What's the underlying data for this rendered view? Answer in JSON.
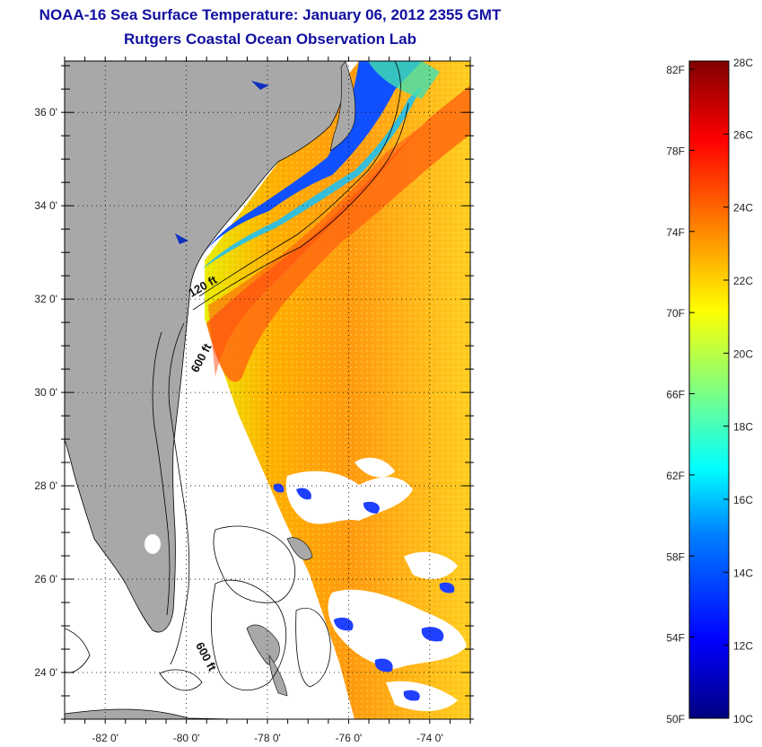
{
  "header": {
    "title_line1": "NOAA-16 Sea Surface Temperature:  January 06, 2012 2355 GMT",
    "title_line2": "Rutgers Coastal Ocean Observation Lab"
  },
  "map": {
    "lat_labels": [
      "36 0'",
      "34 0'",
      "32 0'",
      "30 0'",
      "28 0'",
      "26 0'",
      "24 0'"
    ],
    "lat_values": [
      36,
      34,
      32,
      30,
      28,
      26,
      24
    ],
    "lon_labels": [
      "-82 0'",
      "-80 0'",
      "-78 0'",
      "-76 0'",
      "-74 0'"
    ],
    "lon_values": [
      -82,
      -80,
      -78,
      -76,
      -74
    ],
    "lat_range": [
      23,
      37.1
    ],
    "lon_range": [
      -83,
      -73
    ],
    "contour_labels": [
      {
        "text": "120 ft",
        "lon": -79.55,
        "lat": 32.2
      },
      {
        "text": "600 ft",
        "lon": -79.55,
        "lat": 30.7
      },
      {
        "text": "600 ft",
        "lon": -79.6,
        "lat": 24.3
      }
    ],
    "colors": {
      "land": "#a8a8a8",
      "frame": "#000000"
    }
  },
  "colorbar": {
    "f_labels": [
      "82F",
      "78F",
      "74F",
      "70F",
      "66F",
      "62F",
      "58F",
      "54F",
      "50F"
    ],
    "f_values": [
      82,
      78,
      74,
      70,
      66,
      62,
      58,
      54,
      50
    ],
    "c_labels": [
      "28C",
      "26C",
      "24C",
      "22C",
      "20C",
      "18C",
      "16C",
      "14C",
      "12C",
      "10C"
    ],
    "c_values": [
      28,
      26,
      24,
      22,
      20,
      18,
      16,
      14,
      12,
      10
    ],
    "range_c": [
      10,
      28
    ]
  }
}
